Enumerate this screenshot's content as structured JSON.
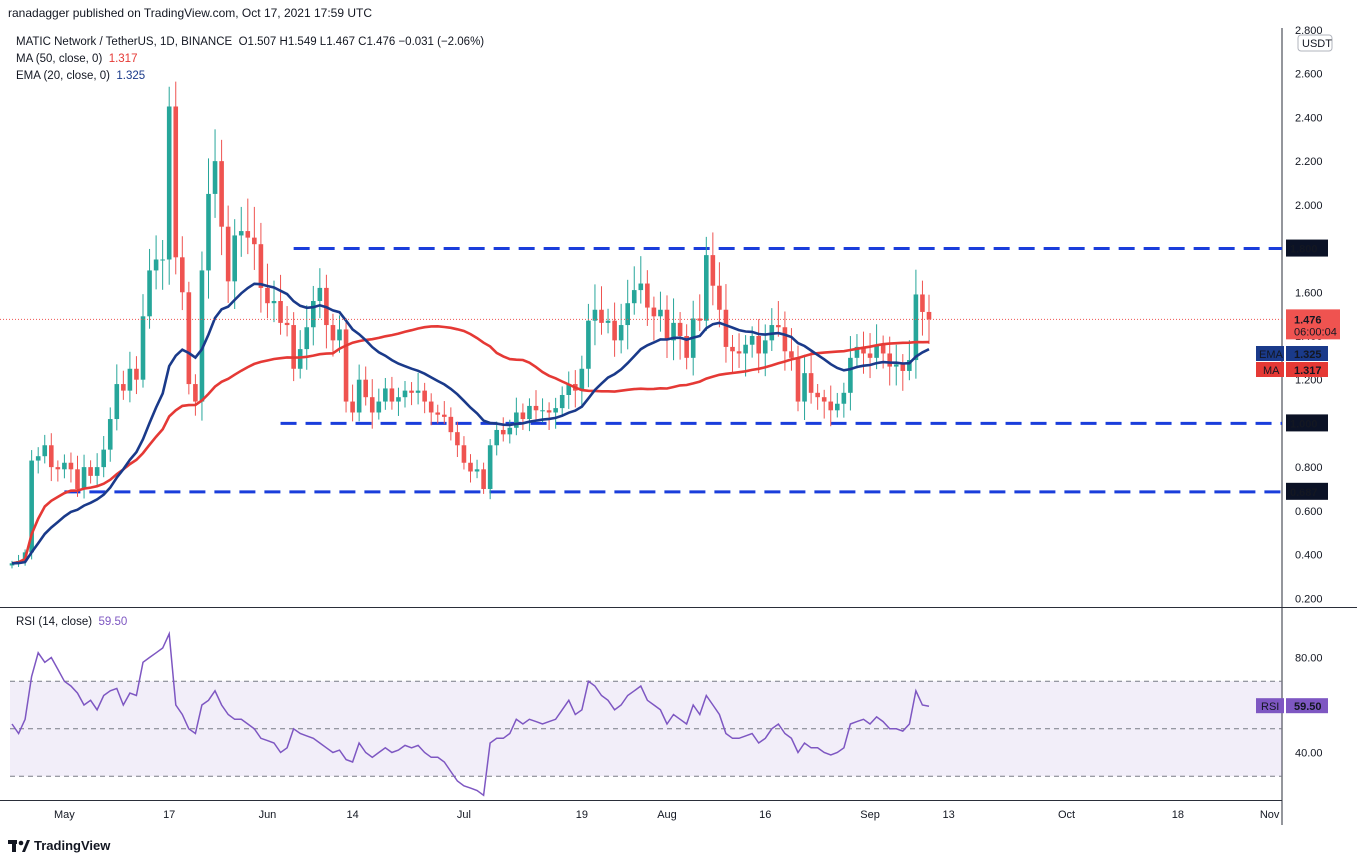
{
  "header": {
    "published": "ranadagger published on TradingView.com, Oct 17, 2021 17:59 UTC"
  },
  "legend": {
    "symbol": "MATIC Network / TetherUS, 1D, BINANCE",
    "ohlc": "O1.507  H1.549  L1.467  C1.476  −0.031 (−2.06%)",
    "ma_label": "MA (50, close, 0)",
    "ma_value": "1.317",
    "ema_label": "EMA (20, close, 0)",
    "ema_value": "1.325"
  },
  "rsi_legend": {
    "label": "RSI (14, close)",
    "value": "59.50"
  },
  "brand": "TradingView",
  "colors": {
    "up": "#26a69a",
    "down": "#ef5350",
    "ema": "#1a3a8a",
    "ma": "#e53935",
    "rsi": "#7e57c2",
    "level": "#1a3ddb"
  },
  "chart_data": {
    "type": "candlestick",
    "currency_badge": "USDT",
    "ylim": [
      0.16,
      2.8
    ],
    "yticks": [
      "2.800",
      "2.600",
      "2.400",
      "2.200",
      "2.000",
      "1.800",
      "1.600",
      "1.400",
      "1.200",
      "1.000",
      "0.800",
      "0.600",
      "0.400",
      "0.200"
    ],
    "xticks": [
      {
        "label": "May",
        "day": 8
      },
      {
        "label": "17",
        "day": 24
      },
      {
        "label": "Jun",
        "day": 39
      },
      {
        "label": "14",
        "day": 52
      },
      {
        "label": "Jul",
        "day": 69
      },
      {
        "label": "19",
        "day": 87
      },
      {
        "label": "Aug",
        "day": 100
      },
      {
        "label": "16",
        "day": 115
      },
      {
        "label": "Sep",
        "day": 131
      },
      {
        "label": "13",
        "day": 143
      },
      {
        "label": "Oct",
        "day": 161
      },
      {
        "label": "18",
        "day": 178
      },
      {
        "label": "Nov",
        "day": 192
      }
    ],
    "levels": [
      {
        "value": 1.8,
        "label": "1.800",
        "from_day": 43
      },
      {
        "value": 1.0,
        "label": "1.000",
        "from_day": 41
      },
      {
        "value": 0.687,
        "label": "0.687",
        "from_day": 8
      }
    ],
    "price_badge": {
      "value": "1.476",
      "time": "06:00:04"
    },
    "ema_badge": {
      "name": "EMA",
      "value": "1.325"
    },
    "ma_badge": {
      "name": "MA",
      "value": "1.317"
    },
    "closes": [
      0.36,
      0.37,
      0.41,
      0.83,
      0.85,
      0.9,
      0.8,
      0.79,
      0.82,
      0.79,
      0.7,
      0.8,
      0.76,
      0.8,
      0.88,
      1.02,
      1.18,
      1.15,
      1.25,
      1.2,
      1.49,
      1.7,
      1.75,
      1.75,
      2.45,
      1.76,
      1.6,
      1.18,
      1.1,
      1.7,
      2.05,
      2.2,
      1.9,
      1.65,
      1.86,
      1.88,
      1.85,
      1.82,
      1.62,
      1.55,
      1.56,
      1.46,
      1.45,
      1.25,
      1.34,
      1.44,
      1.56,
      1.62,
      1.45,
      1.38,
      1.43,
      1.1,
      1.05,
      1.2,
      1.12,
      1.05,
      1.1,
      1.16,
      1.1,
      1.12,
      1.15,
      1.14,
      1.15,
      1.1,
      1.05,
      1.04,
      1.03,
      0.96,
      0.9,
      0.82,
      0.78,
      0.79,
      0.7,
      0.9,
      0.97,
      0.95,
      0.98,
      1.05,
      1.02,
      1.08,
      1.06,
      1.06,
      1.05,
      1.07,
      1.13,
      1.18,
      1.15,
      1.25,
      1.47,
      1.52,
      1.46,
      1.47,
      1.38,
      1.45,
      1.55,
      1.61,
      1.64,
      1.53,
      1.49,
      1.52,
      1.38,
      1.46,
      1.4,
      1.3,
      1.48,
      1.47,
      1.77,
      1.63,
      1.52,
      1.35,
      1.33,
      1.32,
      1.36,
      1.4,
      1.32,
      1.38,
      1.45,
      1.44,
      1.33,
      1.3,
      1.1,
      1.23,
      1.14,
      1.12,
      1.1,
      1.06,
      1.09,
      1.14,
      1.3,
      1.35,
      1.32,
      1.3,
      1.36,
      1.32,
      1.26,
      1.27,
      1.24,
      1.29,
      1.59,
      1.51,
      1.476
    ],
    "rsi": {
      "ylim": [
        20,
        100
      ],
      "yticks": [
        "80.00",
        "40.00"
      ],
      "band": [
        70,
        30
      ],
      "mid": 50,
      "current": "59.50",
      "values": [
        52,
        48,
        54,
        72,
        82,
        78,
        80,
        75,
        70,
        68,
        65,
        60,
        62,
        58,
        64,
        66,
        67,
        60,
        65,
        64,
        78,
        80,
        82,
        84,
        90,
        60,
        56,
        50,
        48,
        60,
        62,
        66,
        60,
        56,
        54,
        54,
        52,
        50,
        46,
        45,
        44,
        40,
        42,
        50,
        48,
        47,
        46,
        44,
        42,
        40,
        41,
        37,
        36,
        44,
        40,
        38,
        40,
        42,
        40,
        41,
        43,
        42,
        43,
        40,
        38,
        38,
        36,
        32,
        28,
        26,
        25,
        24,
        22,
        44,
        46,
        46,
        48,
        54,
        52,
        54,
        53,
        52,
        53,
        54,
        58,
        62,
        56,
        58,
        70,
        68,
        64,
        62,
        58,
        60,
        64,
        66,
        68,
        62,
        60,
        58,
        52,
        56,
        54,
        52,
        60,
        56,
        64,
        60,
        56,
        48,
        46,
        46,
        47,
        48,
        44,
        46,
        50,
        52,
        48,
        46,
        40,
        44,
        42,
        42,
        40,
        39,
        40,
        42,
        52,
        53,
        54,
        52,
        55,
        53,
        50,
        50,
        49,
        52,
        66,
        60,
        59.5
      ]
    },
    "series": [
      {
        "name": "EMA",
        "values_note": "EMA (20, close, 0)"
      },
      {
        "name": "MA",
        "values_note": "MA (50, close, 0)"
      }
    ]
  }
}
